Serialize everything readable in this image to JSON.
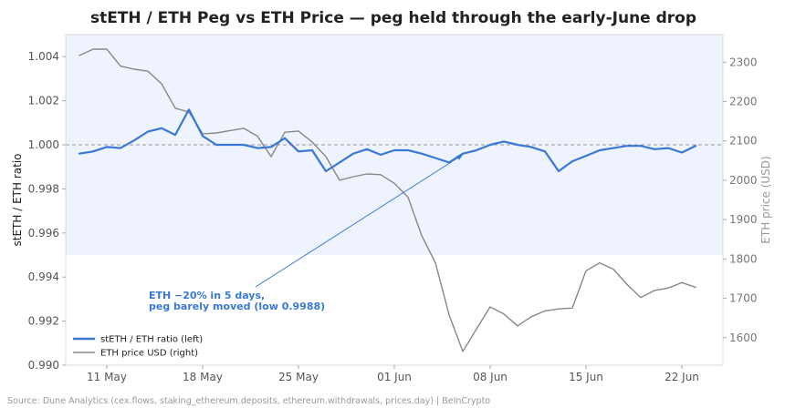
{
  "chart_data": {
    "type": "line",
    "title": "stETH / ETH Peg vs ETH Price — peg held through the early-June drop",
    "x_tick_labels": [
      "11 May",
      "18 May",
      "25 May",
      "01 Jun",
      "08 Jun",
      "15 Jun",
      "22 Jun"
    ],
    "x_ticks": [
      "2022-05-11",
      "2022-05-18",
      "2022-05-25",
      "2022-06-01",
      "2022-06-08",
      "2022-06-15",
      "2022-06-22"
    ],
    "xlim": [
      "2022-05-08",
      "2022-06-25"
    ],
    "ylabel_left": "stETH / ETH ratio",
    "ylabel_right": "ETH price (USD)",
    "ylim_left": [
      0.99,
      1.005
    ],
    "ylim_right": [
      1530,
      2370
    ],
    "left_ticks": [
      "0.990",
      "0.992",
      "0.994",
      "0.996",
      "0.998",
      "1.000",
      "1.002",
      "1.004"
    ],
    "right_ticks": [
      "1600",
      "1700",
      "1800",
      "1900",
      "2000",
      "2100",
      "2200",
      "2300"
    ],
    "reference_line": 1.0,
    "shaded_band_left": [
      0.995,
      1.005
    ],
    "series": [
      {
        "name": "stETH / ETH ratio (left)",
        "axis": "left",
        "color": "#3a78d4",
        "x": [
          "2022-05-09",
          "2022-05-10",
          "2022-05-11",
          "2022-05-12",
          "2022-05-13",
          "2022-05-14",
          "2022-05-15",
          "2022-05-16",
          "2022-05-17",
          "2022-05-18",
          "2022-05-19",
          "2022-05-20",
          "2022-05-21",
          "2022-05-22",
          "2022-05-23",
          "2022-05-24",
          "2022-05-25",
          "2022-05-26",
          "2022-05-27",
          "2022-05-28",
          "2022-05-29",
          "2022-05-30",
          "2022-05-31",
          "2022-06-01",
          "2022-06-02",
          "2022-06-03",
          "2022-06-04",
          "2022-06-05",
          "2022-06-06",
          "2022-06-07",
          "2022-06-08",
          "2022-06-09",
          "2022-06-10",
          "2022-06-11",
          "2022-06-12",
          "2022-06-13",
          "2022-06-14",
          "2022-06-15",
          "2022-06-16",
          "2022-06-17",
          "2022-06-18",
          "2022-06-19",
          "2022-06-20",
          "2022-06-21",
          "2022-06-22",
          "2022-06-23"
        ],
        "values": [
          0.9996,
          0.9997,
          0.9999,
          0.99985,
          1.0002,
          1.0006,
          1.00075,
          1.00045,
          1.0016,
          1.0004,
          1.0,
          1.0,
          1.0,
          0.99985,
          0.9999,
          1.0003,
          0.9997,
          0.99975,
          0.9988,
          0.9992,
          0.9996,
          0.9998,
          0.99955,
          0.99975,
          0.99975,
          0.9996,
          0.9994,
          0.9992,
          0.9996,
          0.99975,
          1.0,
          1.00015,
          1.0,
          0.9999,
          0.9997,
          0.9988,
          0.99925,
          0.9995,
          0.99975,
          0.99985,
          0.99995,
          0.99995,
          0.9998,
          0.99985,
          0.99965,
          0.99995
        ]
      },
      {
        "name": "ETH price USD (right)",
        "axis": "right",
        "color": "#888888",
        "x": [
          "2022-05-09",
          "2022-05-10",
          "2022-05-11",
          "2022-05-12",
          "2022-05-13",
          "2022-05-14",
          "2022-05-15",
          "2022-05-16",
          "2022-05-17",
          "2022-05-18",
          "2022-05-19",
          "2022-05-20",
          "2022-05-21",
          "2022-05-22",
          "2022-05-23",
          "2022-05-24",
          "2022-05-25",
          "2022-05-26",
          "2022-05-27",
          "2022-05-28",
          "2022-05-29",
          "2022-05-30",
          "2022-05-31",
          "2022-06-01",
          "2022-06-02",
          "2022-06-03",
          "2022-06-04",
          "2022-06-05",
          "2022-06-06",
          "2022-06-07",
          "2022-06-08",
          "2022-06-09",
          "2022-06-10",
          "2022-06-11",
          "2022-06-12",
          "2022-06-13",
          "2022-06-14",
          "2022-06-15",
          "2022-06-16",
          "2022-06-17",
          "2022-06-18",
          "2022-06-19",
          "2022-06-20",
          "2022-06-21",
          "2022-06-22",
          "2022-06-23"
        ],
        "values": [
          2317,
          2333,
          2333,
          2290,
          2282,
          2277,
          2245,
          2183,
          2173,
          2118,
          2120,
          2126,
          2132,
          2112,
          2060,
          2122,
          2125,
          2097,
          2060,
          2000,
          2009,
          2016,
          2014,
          1992,
          1957,
          1859,
          1790,
          1658,
          1565,
          1622,
          1678,
          1660,
          1630,
          1653,
          1668,
          1673,
          1675,
          1770,
          1790,
          1774,
          1735,
          1702,
          1720,
          1726,
          1740,
          1728
        ]
      }
    ],
    "annotation": {
      "lines": [
        "ETH −20% in 5 days,",
        "peg barely moved (low 0.9988)"
      ],
      "arrow_target_date": "2022-06-06",
      "arrow_target_value": 0.99955
    },
    "legend": {
      "placement": "lower-left"
    },
    "grid": false
  },
  "source": "Source: Dune Analytics (cex.flows, staking_ethereum.deposits, ethereum.withdrawals, prices.day) | BeInCrypto"
}
